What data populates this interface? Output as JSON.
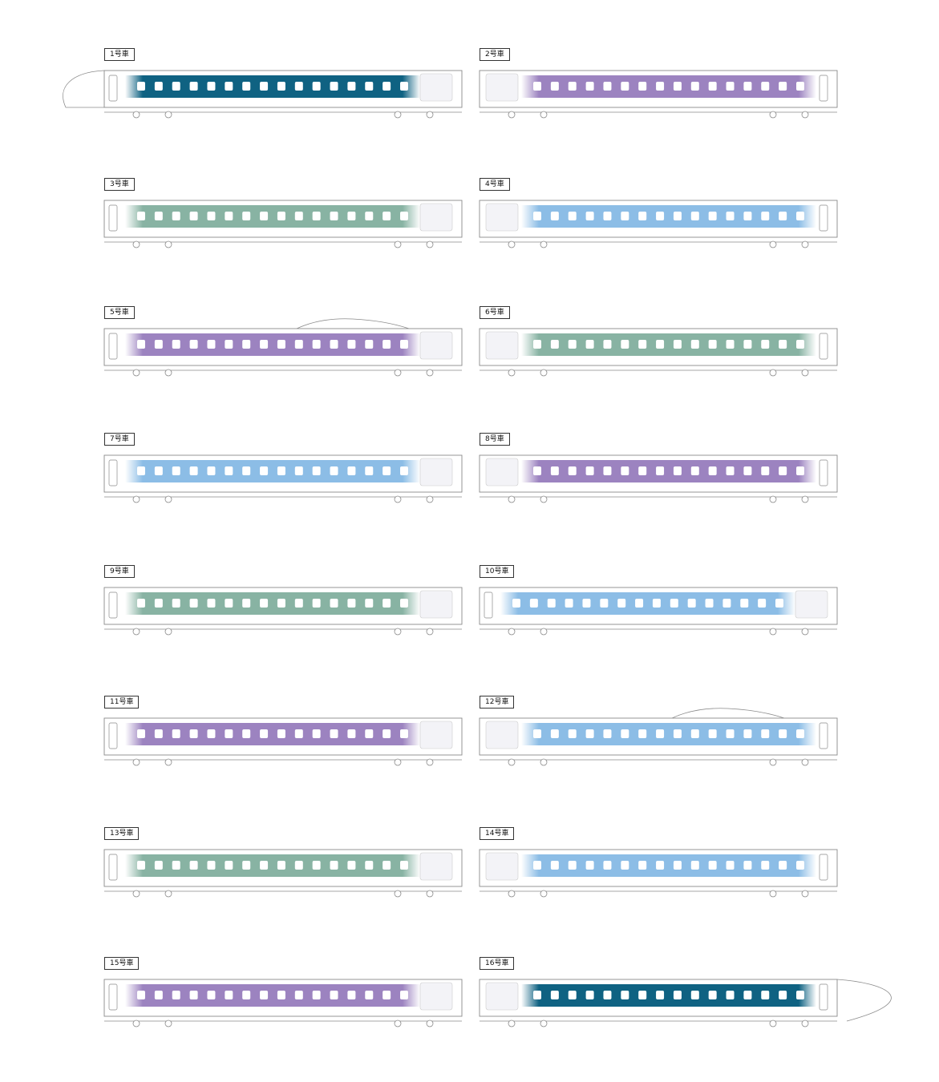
{
  "palette": {
    "teal": "#0f6282",
    "purple": "#9c83c0",
    "green": "#88b3a3",
    "blue": "#8cbde6",
    "outline": "#8a8a8a"
  },
  "cars": [
    {
      "label": "1号車",
      "color": "teal",
      "shape": "nose-left",
      "art": "right"
    },
    {
      "label": "2号車",
      "color": "purple",
      "shape": "plain",
      "art": "left"
    },
    {
      "label": "3号車",
      "color": "green",
      "shape": "plain",
      "art": "right"
    },
    {
      "label": "4号車",
      "color": "blue",
      "shape": "plain",
      "art": "left"
    },
    {
      "label": "5号車",
      "color": "purple",
      "shape": "pantograph",
      "art": "right"
    },
    {
      "label": "6号車",
      "color": "green",
      "shape": "plain",
      "art": "left"
    },
    {
      "label": "7号車",
      "color": "blue",
      "shape": "plain",
      "art": "right"
    },
    {
      "label": "8号車",
      "color": "purple",
      "shape": "plain",
      "art": "left"
    },
    {
      "label": "9号車",
      "color": "green",
      "shape": "plain",
      "art": "right"
    },
    {
      "label": "10号車",
      "color": "blue",
      "shape": "plain",
      "art": "right"
    },
    {
      "label": "11号車",
      "color": "purple",
      "shape": "plain",
      "art": "right"
    },
    {
      "label": "12号車",
      "color": "blue",
      "shape": "pantograph",
      "art": "left"
    },
    {
      "label": "13号車",
      "color": "green",
      "shape": "plain",
      "art": "right"
    },
    {
      "label": "14号車",
      "color": "blue",
      "shape": "plain",
      "art": "left"
    },
    {
      "label": "15号車",
      "color": "purple",
      "shape": "plain",
      "art": "right"
    },
    {
      "label": "16号車",
      "color": "teal",
      "shape": "nose-right",
      "art": "left"
    }
  ]
}
